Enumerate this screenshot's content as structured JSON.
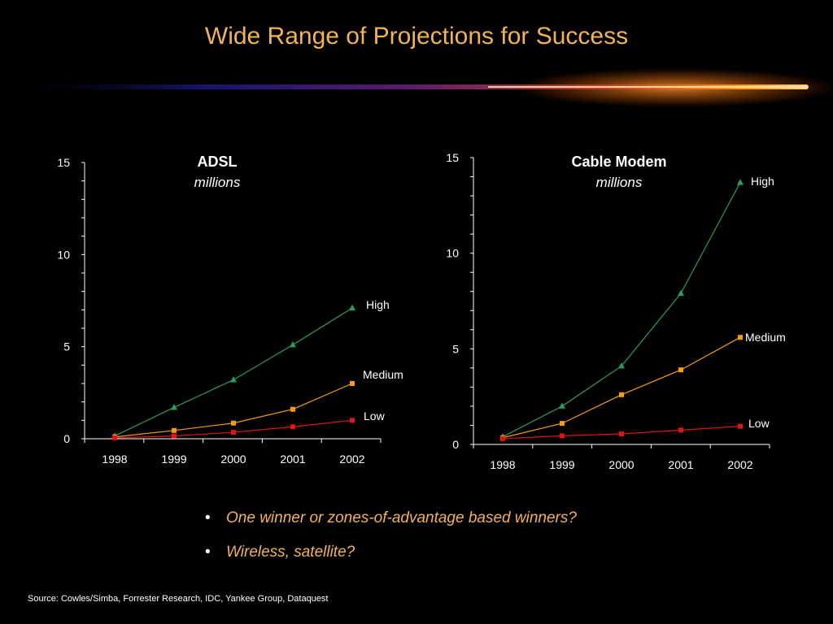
{
  "title": "Wide Range of Projections for Success",
  "bullets": [
    "One winner or zones-of-advantage based winners?",
    "Wireless, satellite?"
  ],
  "source": "Source: Cowles/Simba, Forrester Research, IDC, Yankee Group, Dataquest",
  "colors": {
    "title": "#f0b25a",
    "high": "#2e9a5c",
    "medium": "#f39c12",
    "low": "#e01414",
    "axis": "#ffffff",
    "background": "#000000"
  },
  "chart_data": [
    {
      "type": "line",
      "title": "ADSL",
      "subtitle": "millions",
      "categories": [
        "1998",
        "1999",
        "2000",
        "2001",
        "2002"
      ],
      "ylim": [
        0,
        15
      ],
      "yticks": [
        0,
        5,
        10,
        15
      ],
      "grid": false,
      "series": [
        {
          "name": "High",
          "marker": "triangle",
          "color": "#2e9a5c",
          "values": [
            0.15,
            1.7,
            3.2,
            5.1,
            7.1
          ]
        },
        {
          "name": "Medium",
          "marker": "square",
          "color": "#f39c12",
          "values": [
            0.1,
            0.45,
            0.85,
            1.6,
            3.0
          ]
        },
        {
          "name": "Low",
          "marker": "square",
          "color": "#e01414",
          "values": [
            0.05,
            0.15,
            0.35,
            0.65,
            1.0
          ]
        }
      ]
    },
    {
      "type": "line",
      "title": "Cable Modem",
      "subtitle": "millions",
      "categories": [
        "1998",
        "1999",
        "2000",
        "2001",
        "2002"
      ],
      "ylim": [
        0,
        15
      ],
      "yticks": [
        0,
        5,
        10,
        15
      ],
      "grid": false,
      "series": [
        {
          "name": "High",
          "marker": "triangle",
          "color": "#2e9a5c",
          "values": [
            0.4,
            2.0,
            4.1,
            7.9,
            13.7
          ]
        },
        {
          "name": "Medium",
          "marker": "square",
          "color": "#f39c12",
          "values": [
            0.35,
            1.1,
            2.6,
            3.9,
            5.6
          ]
        },
        {
          "name": "Low",
          "marker": "square",
          "color": "#e01414",
          "values": [
            0.3,
            0.45,
            0.55,
            0.75,
            0.95
          ]
        }
      ]
    }
  ]
}
